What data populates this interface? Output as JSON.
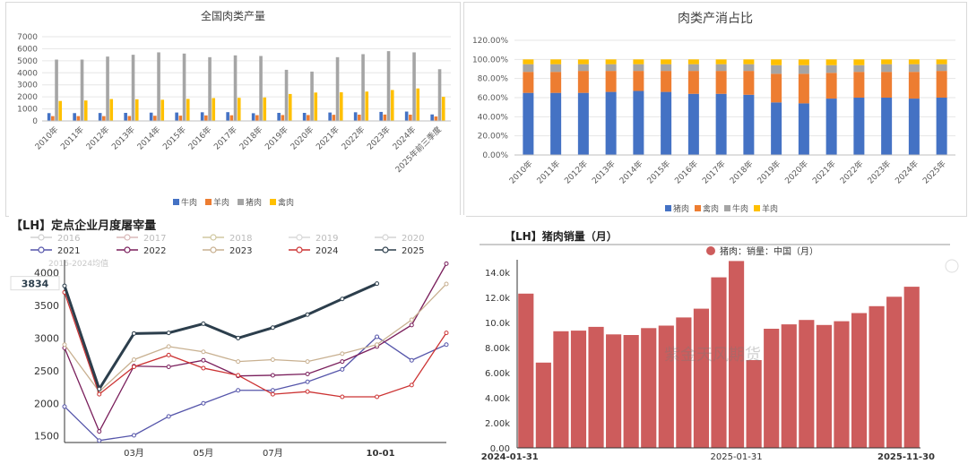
{
  "colors": {
    "beef": "#4472c4",
    "mutton": "#ed7d31",
    "pork": "#a5a5a5",
    "poultry": "#ffc000",
    "y2016": "#d0d0d0",
    "y2017": "#d8b8b8",
    "y2018": "#d0c8a0",
    "y2019": "#d8d8d8",
    "y2020": "#d4d4d4",
    "y2021": "#5555aa",
    "y2022": "#7a1f5c",
    "y2023": "#c8b090",
    "y2024": "#cc3333",
    "y2025": "#2c3e4c",
    "bar_red": "#cd5c5c"
  },
  "chart_data": [
    {
      "type": "bar",
      "title": "全国肉类产量",
      "categories": [
        "2010年",
        "2011年",
        "2012年",
        "2013年",
        "2014年",
        "2015年",
        "2016年",
        "2017年",
        "2018年",
        "2019年",
        "2020年",
        "2021年",
        "2022年",
        "2023年",
        "2024年",
        "2025年前三季度"
      ],
      "series": [
        {
          "name": "牛肉",
          "values": [
            650,
            650,
            660,
            670,
            690,
            700,
            720,
            730,
            640,
            670,
            670,
            700,
            720,
            750,
            780,
            540
          ]
        },
        {
          "name": "羊肉",
          "values": [
            400,
            400,
            400,
            410,
            430,
            440,
            460,
            470,
            480,
            490,
            490,
            510,
            520,
            530,
            520,
            370
          ]
        },
        {
          "name": "猪肉",
          "values": [
            5100,
            5100,
            5350,
            5500,
            5700,
            5600,
            5300,
            5450,
            5400,
            4250,
            4100,
            5300,
            5550,
            5800,
            5700,
            4300
          ]
        },
        {
          "name": "禽肉",
          "values": [
            1660,
            1700,
            1820,
            1800,
            1760,
            1830,
            1900,
            1920,
            1950,
            2240,
            2360,
            2380,
            2440,
            2570,
            2700,
            2000
          ]
        }
      ],
      "ylim": [
        0,
        7000
      ],
      "yticks": [
        "0",
        "1000",
        "2000",
        "3000",
        "4000",
        "5000",
        "6000",
        "7000"
      ],
      "legend": "bottom"
    },
    {
      "type": "bar",
      "title": "肉类产消占比",
      "categories": [
        "2010年",
        "2011年",
        "2012年",
        "2013年",
        "2014年",
        "2015年",
        "2016年",
        "2017年",
        "2018年",
        "2019年",
        "2020年",
        "2021年",
        "2022年",
        "2023年",
        "2024年",
        "2025年"
      ],
      "series": [
        {
          "name": "猪肉",
          "values": [
            65,
            65,
            65,
            66,
            67,
            66,
            64,
            64,
            63,
            55,
            54,
            59,
            60,
            60,
            59,
            60
          ]
        },
        {
          "name": "禽肉",
          "values": [
            22,
            22,
            23,
            22,
            21,
            22,
            24,
            24,
            25,
            30,
            31,
            27,
            27,
            27,
            28,
            28
          ]
        },
        {
          "name": "牛肉",
          "values": [
            8,
            8,
            7,
            7,
            7,
            7,
            7,
            7,
            7,
            9,
            9,
            8,
            7,
            8,
            8,
            7
          ]
        },
        {
          "name": "羊肉",
          "values": [
            5,
            5,
            5,
            5,
            5,
            5,
            5,
            5,
            5,
            6,
            6,
            6,
            6,
            5,
            5,
            5
          ]
        }
      ],
      "stacked": true,
      "ylim": [
        0,
        120
      ],
      "yticks": [
        "0.00%",
        "20.00%",
        "40.00%",
        "60.00%",
        "80.00%",
        "100.00%",
        "120.00%"
      ],
      "legend": "bottom"
    },
    {
      "type": "line",
      "title": "【LH】定点企业月度屠宰量",
      "annotation": "2016-2024均值",
      "current_value": "3834",
      "x_tick_labels": [
        "03月",
        "05月",
        "07月",
        "10-01"
      ],
      "ylim": [
        1400,
        4200
      ],
      "yticks": [
        "1500",
        "2000",
        "2500",
        "3000",
        "3500",
        "4000"
      ],
      "series": [
        {
          "name": "2016",
          "values": []
        },
        {
          "name": "2017",
          "values": []
        },
        {
          "name": "2018",
          "values": []
        },
        {
          "name": "2019",
          "values": []
        },
        {
          "name": "2020",
          "values": []
        },
        {
          "name": "2021",
          "values": [
            1950,
            1430,
            1510,
            1800,
            2000,
            2200,
            2200,
            2330,
            2520,
            3020,
            2660,
            2900
          ]
        },
        {
          "name": "2022",
          "values": [
            2850,
            1570,
            2570,
            2560,
            2660,
            2420,
            2430,
            2450,
            2640,
            2870,
            3200,
            4140
          ]
        },
        {
          "name": "2023",
          "values": [
            2900,
            2180,
            2670,
            2870,
            2790,
            2640,
            2670,
            2640,
            2760,
            2900,
            3280,
            3830
          ]
        },
        {
          "name": "2024",
          "values": [
            3700,
            2140,
            2560,
            2740,
            2540,
            2430,
            2140,
            2180,
            2100,
            2100,
            2280,
            3080
          ]
        },
        {
          "name": "2025",
          "values": [
            3800,
            2220,
            3070,
            3080,
            3220,
            3000,
            3160,
            3360,
            3600,
            3834,
            null,
            null
          ]
        }
      ],
      "legend": "top"
    },
    {
      "type": "bar",
      "title": "【LH】猪肉销量（月）",
      "legend_entry": "猪肉：销量：中国（月）",
      "watermark": "紫金天风期货",
      "values_k": [
        12.3,
        6.8,
        9.3,
        9.35,
        9.65,
        9.05,
        9.0,
        9.55,
        9.75,
        10.4,
        11.1,
        13.6,
        14.9,
        7.0,
        9.5,
        9.85,
        10.2,
        9.8,
        10.1,
        10.75,
        11.3,
        12.05,
        12.85
      ],
      "x_tick_labels": [
        "2024-01-31",
        "2025-01-31",
        "2025-11-30"
      ],
      "yticks": [
        "0.00",
        "2.00k",
        "4.00k",
        "6.00k",
        "8.00k",
        "10.0k",
        "12.0k",
        "14.0k"
      ],
      "ylim": [
        0,
        15
      ]
    }
  ]
}
